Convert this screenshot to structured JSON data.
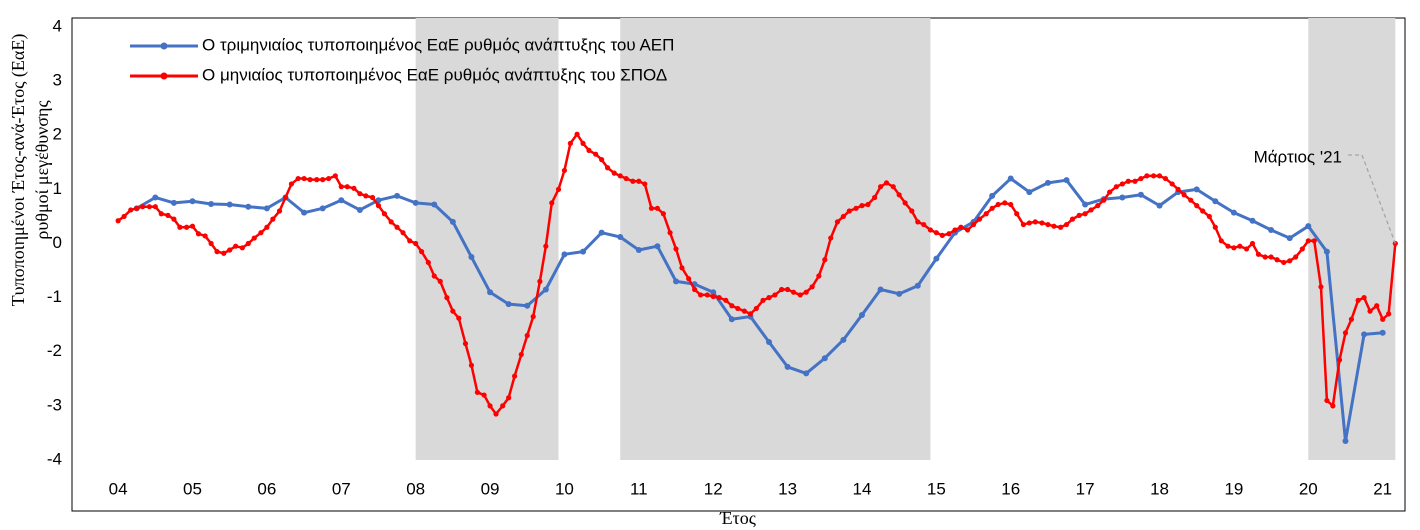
{
  "chart_data": {
    "type": "line",
    "ylabel": [
      "Τυποποιημένοι Έτος-ανά-Έτος (ΕαΕ)",
      "ρυθμοί μεγέθυνσης"
    ],
    "xlabel": "Έτος",
    "xlim": [
      2003.38,
      2021.3
    ],
    "ylim": [
      -4,
      4
    ],
    "yticks": [
      -4,
      -3,
      -2,
      -1,
      0,
      1,
      2,
      3,
      4
    ],
    "xticks": [
      {
        "value": 2004,
        "label": "04"
      },
      {
        "value": 2005,
        "label": "05"
      },
      {
        "value": 2006,
        "label": "06"
      },
      {
        "value": 2007,
        "label": "07"
      },
      {
        "value": 2008,
        "label": "08"
      },
      {
        "value": 2009,
        "label": "09"
      },
      {
        "value": 2010,
        "label": "10"
      },
      {
        "value": 2011,
        "label": "11"
      },
      {
        "value": 2012,
        "label": "12"
      },
      {
        "value": 2013,
        "label": "13"
      },
      {
        "value": 2014,
        "label": "14"
      },
      {
        "value": 2015,
        "label": "15"
      },
      {
        "value": 2016,
        "label": "16"
      },
      {
        "value": 2017,
        "label": "17"
      },
      {
        "value": 2018,
        "label": "18"
      },
      {
        "value": 2019,
        "label": "19"
      },
      {
        "value": 2020,
        "label": "20"
      },
      {
        "value": 2021,
        "label": "21"
      }
    ],
    "grid": false,
    "legend": "upper left",
    "shaded_color": "#d9d9d9",
    "shaded_regions": [
      [
        2008,
        2009.92
      ],
      [
        2010.75,
        2014.92
      ],
      [
        2020,
        2021.17
      ]
    ],
    "annotation": {
      "text": "Μάρτιος '21"
    },
    "series": [
      {
        "name": "Ο τριμηνιαίος τυποποιημένος ΕαΕ ρυθμός ανάπτυξης του ΑΕΠ",
        "color": "#4472c4",
        "x": [
          2004.25,
          2004.5,
          2004.75,
          2005,
          2005.25,
          2005.5,
          2005.75,
          2006,
          2006.25,
          2006.5,
          2006.75,
          2007,
          2007.25,
          2007.5,
          2007.75,
          2008,
          2008.25,
          2008.5,
          2008.75,
          2009,
          2009.25,
          2009.5,
          2009.75,
          2010,
          2010.25,
          2010.5,
          2010.75,
          2011,
          2011.25,
          2011.5,
          2011.75,
          2012,
          2012.25,
          2012.5,
          2012.75,
          2013,
          2013.25,
          2013.5,
          2013.75,
          2014,
          2014.25,
          2014.5,
          2014.75,
          2015,
          2015.25,
          2015.5,
          2015.75,
          2016,
          2016.25,
          2016.5,
          2016.75,
          2017,
          2017.25,
          2017.5,
          2017.75,
          2018,
          2018.25,
          2018.5,
          2018.75,
          2019,
          2019.25,
          2019.5,
          2019.75,
          2020,
          2020.25,
          2020.5,
          2020.75,
          2021
        ],
        "values": [
          0.65,
          0.85,
          0.75,
          0.78,
          0.73,
          0.72,
          0.68,
          0.65,
          0.85,
          0.57,
          0.65,
          0.8,
          0.62,
          0.8,
          0.88,
          0.75,
          0.72,
          0.4,
          -0.25,
          -0.9,
          -1.12,
          -1.15,
          -0.85,
          -0.2,
          -0.15,
          0.2,
          0.12,
          -0.12,
          -0.05,
          -0.7,
          -0.75,
          -0.9,
          -1.4,
          -1.35,
          -1.82,
          -2.28,
          -2.4,
          -2.12,
          -1.78,
          -1.32,
          -0.85,
          -0.93,
          -0.78,
          -0.28,
          0.2,
          0.4,
          0.88,
          1.2,
          0.95,
          1.12,
          1.17,
          0.72,
          0.82,
          0.85,
          0.9,
          0.7,
          0.95,
          1.0,
          0.78,
          0.57,
          0.42,
          0.25,
          0.1,
          0.32,
          -0.15,
          -3.65,
          -1.68,
          -1.65
        ]
      },
      {
        "name": "Ο μηνιαίος τυποποιημένος ΕαΕ ρυθμός ανάπτυξης του ΣΠΟΔ",
        "color": "#ff0000",
        "x": [
          2004,
          2004.08,
          2004.17,
          2004.25,
          2004.33,
          2004.42,
          2004.5,
          2004.58,
          2004.67,
          2004.75,
          2004.83,
          2004.92,
          2005,
          2005.08,
          2005.17,
          2005.25,
          2005.33,
          2005.42,
          2005.5,
          2005.58,
          2005.67,
          2005.75,
          2005.83,
          2005.92,
          2006,
          2006.08,
          2006.17,
          2006.25,
          2006.33,
          2006.42,
          2006.5,
          2006.58,
          2006.67,
          2006.75,
          2006.83,
          2006.92,
          2007,
          2007.08,
          2007.17,
          2007.25,
          2007.33,
          2007.42,
          2007.5,
          2007.58,
          2007.67,
          2007.75,
          2007.83,
          2007.92,
          2008,
          2008.08,
          2008.17,
          2008.25,
          2008.33,
          2008.42,
          2008.5,
          2008.58,
          2008.67,
          2008.75,
          2008.83,
          2008.92,
          2009,
          2009.08,
          2009.17,
          2009.25,
          2009.33,
          2009.42,
          2009.5,
          2009.58,
          2009.67,
          2009.75,
          2009.83,
          2009.92,
          2010,
          2010.08,
          2010.17,
          2010.25,
          2010.33,
          2010.42,
          2010.5,
          2010.58,
          2010.67,
          2010.75,
          2010.83,
          2010.92,
          2011,
          2011.08,
          2011.17,
          2011.25,
          2011.33,
          2011.42,
          2011.5,
          2011.58,
          2011.67,
          2011.75,
          2011.83,
          2011.92,
          2012,
          2012.08,
          2012.17,
          2012.25,
          2012.33,
          2012.42,
          2012.5,
          2012.58,
          2012.67,
          2012.75,
          2012.83,
          2012.92,
          2013,
          2013.08,
          2013.17,
          2013.25,
          2013.33,
          2013.42,
          2013.5,
          2013.58,
          2013.67,
          2013.75,
          2013.83,
          2013.92,
          2014,
          2014.08,
          2014.17,
          2014.25,
          2014.33,
          2014.42,
          2014.5,
          2014.58,
          2014.67,
          2014.75,
          2014.83,
          2014.92,
          2015,
          2015.08,
          2015.17,
          2015.25,
          2015.33,
          2015.42,
          2015.5,
          2015.58,
          2015.67,
          2015.75,
          2015.83,
          2015.92,
          2016,
          2016.08,
          2016.17,
          2016.25,
          2016.33,
          2016.42,
          2016.5,
          2016.58,
          2016.67,
          2016.75,
          2016.83,
          2016.92,
          2017,
          2017.08,
          2017.17,
          2017.25,
          2017.33,
          2017.42,
          2017.5,
          2017.58,
          2017.67,
          2017.75,
          2017.83,
          2017.92,
          2018,
          2018.08,
          2018.17,
          2018.25,
          2018.33,
          2018.42,
          2018.5,
          2018.58,
          2018.67,
          2018.75,
          2018.83,
          2018.92,
          2019,
          2019.08,
          2019.17,
          2019.25,
          2019.33,
          2019.42,
          2019.5,
          2019.58,
          2019.67,
          2019.75,
          2019.83,
          2019.92,
          2020,
          2020.08,
          2020.17,
          2020.25,
          2020.33,
          2020.42,
          2020.5,
          2020.58,
          2020.67,
          2020.75,
          2020.83,
          2020.92,
          2021,
          2021.08,
          2021.17
        ],
        "values": [
          0.42,
          0.5,
          0.62,
          0.65,
          0.68,
          0.68,
          0.68,
          0.55,
          0.52,
          0.45,
          0.3,
          0.3,
          0.32,
          0.18,
          0.14,
          0.0,
          -0.15,
          -0.18,
          -0.12,
          -0.05,
          -0.08,
          0.0,
          0.1,
          0.2,
          0.3,
          0.45,
          0.6,
          0.85,
          1.1,
          1.2,
          1.2,
          1.18,
          1.18,
          1.18,
          1.2,
          1.25,
          1.05,
          1.05,
          1.02,
          0.92,
          0.88,
          0.85,
          0.7,
          0.55,
          0.4,
          0.3,
          0.2,
          0.05,
          0.0,
          -0.15,
          -0.35,
          -0.6,
          -0.7,
          -1.0,
          -1.25,
          -1.38,
          -1.85,
          -2.25,
          -2.75,
          -2.8,
          -3.0,
          -3.15,
          -3.0,
          -2.85,
          -2.45,
          -2.05,
          -1.7,
          -1.35,
          -0.7,
          -0.05,
          0.75,
          1.0,
          1.35,
          1.85,
          2.02,
          1.85,
          1.72,
          1.65,
          1.55,
          1.4,
          1.3,
          1.25,
          1.2,
          1.15,
          1.15,
          1.1,
          0.65,
          0.65,
          0.55,
          0.2,
          -0.1,
          -0.45,
          -0.65,
          -0.85,
          -0.95,
          -0.95,
          -0.98,
          -1.0,
          -1.05,
          -1.15,
          -1.2,
          -1.25,
          -1.3,
          -1.2,
          -1.05,
          -1.0,
          -0.95,
          -0.85,
          -0.85,
          -0.9,
          -0.95,
          -0.9,
          -0.8,
          -0.6,
          -0.3,
          0.1,
          0.4,
          0.5,
          0.6,
          0.65,
          0.7,
          0.72,
          0.85,
          1.05,
          1.12,
          1.05,
          0.9,
          0.75,
          0.6,
          0.4,
          0.35,
          0.25,
          0.2,
          0.15,
          0.18,
          0.25,
          0.3,
          0.25,
          0.35,
          0.45,
          0.55,
          0.65,
          0.72,
          0.75,
          0.72,
          0.55,
          0.35,
          0.38,
          0.4,
          0.38,
          0.35,
          0.32,
          0.3,
          0.35,
          0.45,
          0.52,
          0.55,
          0.62,
          0.7,
          0.8,
          0.95,
          1.05,
          1.1,
          1.15,
          1.15,
          1.2,
          1.25,
          1.25,
          1.25,
          1.2,
          1.1,
          1.0,
          0.9,
          0.8,
          0.7,
          0.6,
          0.5,
          0.3,
          0.05,
          -0.05,
          -0.08,
          -0.05,
          -0.1,
          0.0,
          -0.2,
          -0.25,
          -0.25,
          -0.3,
          -0.35,
          -0.32,
          -0.25,
          -0.1,
          0.05,
          0.05,
          -0.8,
          -2.9,
          -3.0,
          -2.15,
          -1.65,
          -1.4,
          -1.05,
          -1.0,
          -1.25,
          -1.15,
          -1.4,
          -1.3,
          0.0
        ]
      }
    ]
  }
}
